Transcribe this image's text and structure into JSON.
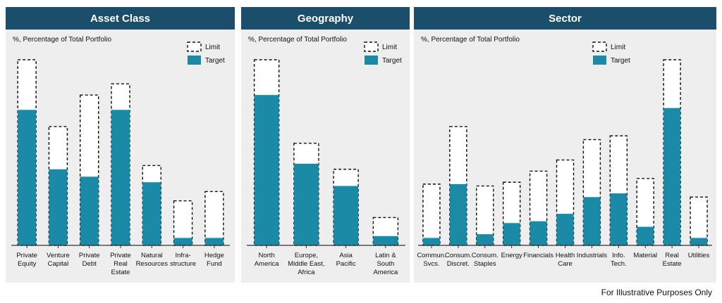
{
  "colors": {
    "header_bg": "#1b4e6b",
    "target": "#1a8aa6",
    "panel_bg": "#eeeeee",
    "limit_border": "#111111"
  },
  "footer": "For Illustrative Purposes Only",
  "chart_data": [
    {
      "type": "bar",
      "title": "Asset Class",
      "subtitle": "%, Percentage of Total Portfolio",
      "legend": [
        "Limit",
        "Target"
      ],
      "categories": [
        [
          "Private",
          "Equity"
        ],
        [
          "Venture",
          "Capital"
        ],
        [
          "Private",
          "Debt"
        ],
        [
          "Private",
          "Real",
          "Estate"
        ],
        [
          "Natural",
          "Resources"
        ],
        [
          "Infra-",
          "structure"
        ],
        [
          "Hedge",
          "Fund"
        ]
      ],
      "series": [
        {
          "name": "Target",
          "values": [
            73,
            41,
            37,
            73,
            34,
            4,
            4
          ]
        },
        {
          "name": "Limit",
          "values": [
            100,
            64,
            81,
            87,
            43,
            24,
            29
          ]
        }
      ],
      "ylim": [
        0,
        100
      ]
    },
    {
      "type": "bar",
      "title": "Geography",
      "subtitle": "%, Percentage of Total Portfolio",
      "legend": [
        "Limit",
        "Target"
      ],
      "categories": [
        [
          "North",
          "America"
        ],
        [
          "Europe,",
          "Middle East,",
          "Africa"
        ],
        [
          "Asia",
          "Pacific"
        ],
        [
          "Latin &",
          "South",
          "America"
        ]
      ],
      "series": [
        {
          "name": "Target",
          "values": [
            81,
            44,
            32,
            5
          ]
        },
        {
          "name": "Limit",
          "values": [
            100,
            55,
            41,
            15
          ]
        }
      ],
      "ylim": [
        0,
        100
      ]
    },
    {
      "type": "bar",
      "title": "Sector",
      "subtitle": "%, Percentage of Total Portfolio",
      "legend": [
        "Limit",
        "Target"
      ],
      "categories": [
        [
          "Commun.",
          "Svcs."
        ],
        [
          "Consum.",
          "Discret."
        ],
        [
          "Consum.",
          "Staples"
        ],
        [
          "Energy"
        ],
        [
          "Financials"
        ],
        [
          "Health",
          "Care"
        ],
        [
          "Industrials"
        ],
        [
          "Info.",
          "Tech."
        ],
        [
          "Material"
        ],
        [
          "Real",
          "Estate"
        ],
        [
          "Utilities"
        ]
      ],
      "series": [
        {
          "name": "Target",
          "values": [
            4,
            33,
            6,
            12,
            13,
            17,
            26,
            28,
            10,
            74,
            4
          ]
        },
        {
          "name": "Limit",
          "values": [
            33,
            64,
            32,
            34,
            40,
            46,
            57,
            59,
            36,
            100,
            26
          ]
        }
      ],
      "ylim": [
        0,
        100
      ]
    }
  ]
}
